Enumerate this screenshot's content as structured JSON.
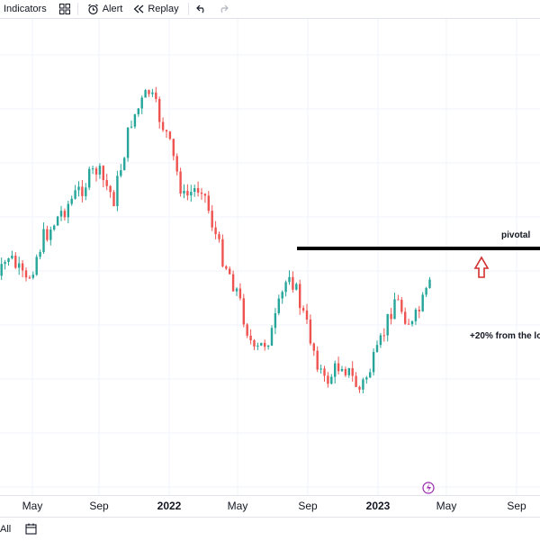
{
  "toolbar": {
    "indicators_label": "Indicators",
    "alert_label": "Alert",
    "replay_label": "Replay"
  },
  "annotations": {
    "pivotal": "pivotal",
    "gain": "+20% from the lo"
  },
  "bottom_bar": {
    "range_label": "All"
  },
  "colors": {
    "up": "#26a69a",
    "down": "#ef5350",
    "level_line": "#000000",
    "arrow": "#d32f2f",
    "event_marker": "#9c27b0",
    "grid": "#f0f3fa"
  },
  "icons": {
    "templates": "grid-icon",
    "alert": "alarm-clock-icon",
    "replay": "rewind-icon",
    "undo": "undo-icon",
    "redo": "redo-icon",
    "event": "lightning-icon",
    "calendar": "calendar-icon"
  },
  "chart_data": {
    "type": "candlestick",
    "x_tick_labels": [
      "May",
      "Sep",
      "2022",
      "May",
      "Sep",
      "2023",
      "May",
      "Sep"
    ],
    "grid": true,
    "horizontal_level_note": "pivotal",
    "series": [
      {
        "name": "",
        "approx_close_path": [
          {
            "x": "2021-03",
            "y": 0.38
          },
          {
            "x": "2021-04",
            "y": 0.5
          },
          {
            "x": "2021-05",
            "y": 0.42
          },
          {
            "x": "2021-06",
            "y": 0.55
          },
          {
            "x": "2021-07",
            "y": 0.62
          },
          {
            "x": "2021-08",
            "y": 0.68
          },
          {
            "x": "2021-09",
            "y": 0.74
          },
          {
            "x": "2021-10",
            "y": 0.66
          },
          {
            "x": "2021-11",
            "y": 0.88
          },
          {
            "x": "2021-12",
            "y": 0.96
          },
          {
            "x": "2022-01",
            "y": 0.84
          },
          {
            "x": "2022-02",
            "y": 0.66
          },
          {
            "x": "2022-03",
            "y": 0.7
          },
          {
            "x": "2022-04",
            "y": 0.52
          },
          {
            "x": "2022-05",
            "y": 0.4
          },
          {
            "x": "2022-06",
            "y": 0.22
          },
          {
            "x": "2022-07",
            "y": 0.28
          },
          {
            "x": "2022-08",
            "y": 0.46
          },
          {
            "x": "2022-09",
            "y": 0.3
          },
          {
            "x": "2022-10",
            "y": 0.14
          },
          {
            "x": "2022-11",
            "y": 0.2
          },
          {
            "x": "2022-12",
            "y": 0.12
          },
          {
            "x": "2023-01",
            "y": 0.22
          },
          {
            "x": "2023-02",
            "y": 0.38
          },
          {
            "x": "2023-03",
            "y": 0.3
          },
          {
            "x": "2023-04",
            "y": 0.41
          }
        ]
      }
    ]
  }
}
